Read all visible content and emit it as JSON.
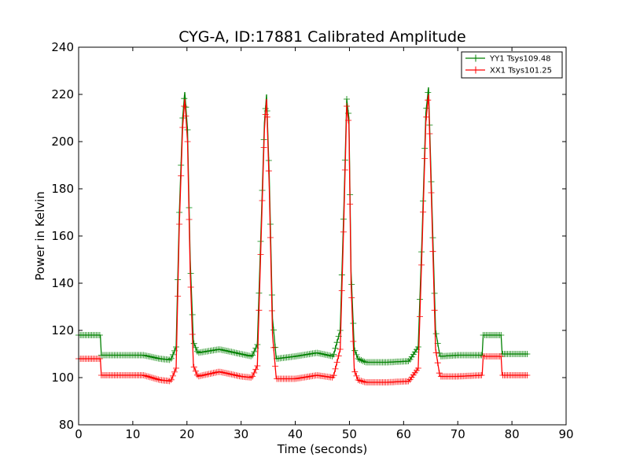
{
  "chart_data": {
    "type": "line",
    "title": "CYG-A, ID:17881 Calibrated Amplitude",
    "xlabel": "Time (seconds)",
    "ylabel": "Power in Kelvin",
    "xlim": [
      0,
      90
    ],
    "ylim": [
      80,
      240
    ],
    "xticks": [
      "0",
      "10",
      "20",
      "30",
      "40",
      "50",
      "60",
      "70",
      "80",
      "90"
    ],
    "yticks": [
      "80",
      "100",
      "120",
      "140",
      "160",
      "180",
      "200",
      "220",
      "240"
    ],
    "grid": false,
    "legend_position": "top-right",
    "marker": "plus",
    "series": [
      {
        "name": "YY1 Tsys109.48",
        "color": "#008000",
        "x": [
          0,
          4,
          4.2,
          8,
          12,
          15,
          17,
          18,
          18.6,
          19.2,
          19.6,
          20.1,
          20.6,
          21.2,
          22,
          26,
          30,
          32,
          33,
          33.7,
          34.3,
          34.7,
          35.2,
          35.8,
          36.5,
          40,
          44,
          47,
          48.3,
          49,
          49.5,
          49.9,
          50.3,
          50.9,
          51.6,
          53,
          57,
          61,
          62.7,
          63.4,
          64.1,
          64.6,
          65.2,
          65.9,
          66.7,
          70,
          74.5,
          74.7,
          78,
          78.2,
          83
        ],
        "y": [
          118,
          118,
          109.5,
          109.5,
          109.5,
          108,
          107.5,
          113,
          170,
          210,
          221,
          205,
          150,
          115,
          110.5,
          112,
          110,
          109,
          114,
          165,
          208,
          220,
          185,
          125,
          108,
          109,
          110.5,
          109,
          120,
          175,
          218,
          210,
          145,
          112,
          108,
          106.5,
          106.5,
          107,
          113,
          160,
          212,
          223,
          175,
          120,
          109,
          109.5,
          109.5,
          118,
          118,
          110,
          110
        ]
      },
      {
        "name": "XX1 Tsys101.25",
        "color": "#ff0000",
        "x": [
          0,
          4,
          4.2,
          8,
          12,
          15,
          17,
          18,
          18.6,
          19.2,
          19.6,
          20.1,
          20.6,
          21.2,
          22,
          26,
          30,
          32,
          33,
          33.7,
          34.3,
          34.7,
          35.2,
          35.8,
          36.5,
          40,
          44,
          47,
          48.3,
          49,
          49.5,
          49.9,
          50.3,
          50.9,
          51.6,
          53,
          57,
          61,
          62.7,
          63.4,
          64.1,
          64.6,
          65.2,
          65.9,
          66.7,
          70,
          74.5,
          74.7,
          78,
          78.2,
          83
        ],
        "y": [
          108,
          108,
          101,
          101,
          101,
          99,
          98.5,
          104,
          165,
          206,
          218,
          200,
          145,
          105,
          100.5,
          102.5,
          100.5,
          100,
          105,
          160,
          205,
          218,
          180,
          118,
          99.5,
          99.5,
          101,
          100,
          112,
          170,
          215,
          207,
          140,
          103,
          99,
          98,
          98,
          98.5,
          104,
          155,
          208,
          220,
          170,
          112,
          100.5,
          100.5,
          101,
          109,
          109,
          101,
          101
        ]
      }
    ]
  }
}
